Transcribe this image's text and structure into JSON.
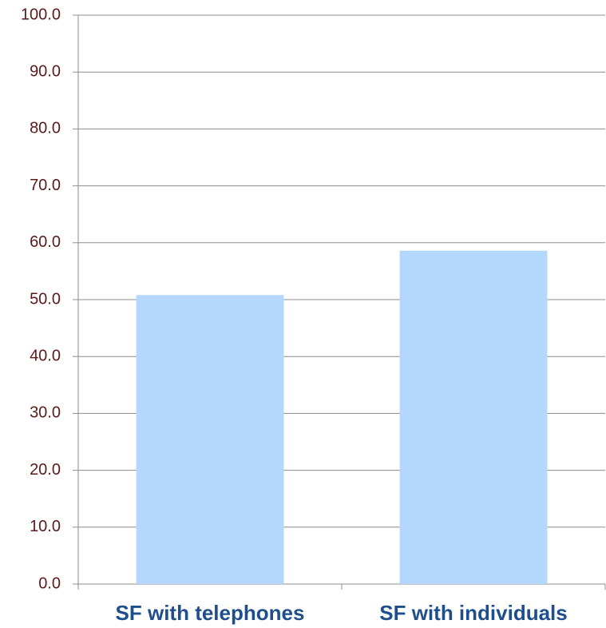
{
  "chart_data": {
    "type": "bar",
    "categories": [
      "SF with telephones",
      "SF with individuals"
    ],
    "values": [
      50.8,
      58.6
    ],
    "color": "#b3d7fd",
    "ylim": [
      0,
      100
    ],
    "yticks": [
      {
        "value": 0,
        "label": "0.0"
      },
      {
        "value": 10,
        "label": "10.0"
      },
      {
        "value": 20,
        "label": "20.0"
      },
      {
        "value": 30,
        "label": "30.0"
      },
      {
        "value": 40,
        "label": "40.0"
      },
      {
        "value": 50,
        "label": "50.0"
      },
      {
        "value": 60,
        "label": "60.0"
      },
      {
        "value": 70,
        "label": "70.0"
      },
      {
        "value": 80,
        "label": "80.0"
      },
      {
        "value": 90,
        "label": "90.0"
      },
      {
        "value": 100,
        "label": "100.0"
      }
    ],
    "grid": true
  }
}
